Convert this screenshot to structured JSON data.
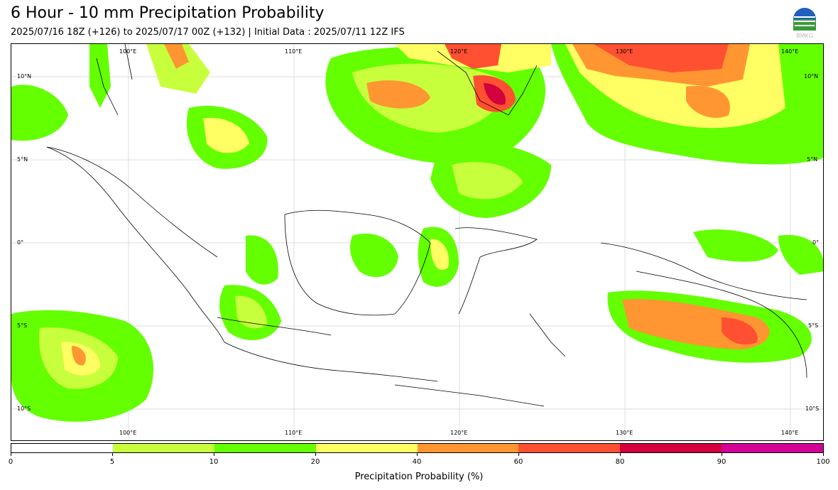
{
  "header": {
    "title": "6 Hour - 10 mm Precipitation Probability",
    "subtitle": "2025/07/16 18Z (+126) to 2025/07/17 00Z (+132) | Initial Data : 2025/07/11 12Z IFS",
    "logo_text": "BMKG"
  },
  "map": {
    "lon_labels_top": [
      "100°E",
      "110°E",
      "120°E",
      "130°E",
      "140°E"
    ],
    "lon_labels_bottom": [
      "100°E",
      "110°E",
      "120°E",
      "130°E",
      "140°E"
    ],
    "lat_labels_left": [
      "10°N",
      "5°N",
      "0°",
      "5°S",
      "10°S"
    ],
    "lat_labels_right": [
      "10°N",
      "5°N",
      "0°",
      "5°S",
      "10°S"
    ]
  },
  "colorbar": {
    "label": "Precipitation Probability (%)",
    "ticks": [
      "0",
      "5",
      "10",
      "20",
      "40",
      "60",
      "80",
      "90",
      "100"
    ],
    "colors": [
      "#ffffff",
      "#c8ff3c",
      "#64ff00",
      "#ffff64",
      "#ff9632",
      "#ff5032",
      "#d2003c",
      "#d20096"
    ]
  }
}
